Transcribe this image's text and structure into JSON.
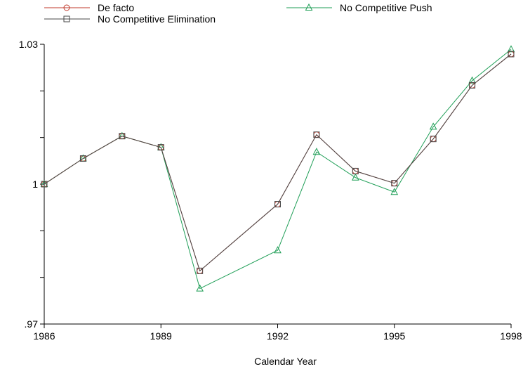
{
  "chart_data": {
    "type": "line",
    "xlabel": "Calendar Year",
    "ylabel": "",
    "x": [
      1986,
      1987,
      1988,
      1989,
      1990,
      1992,
      1993,
      1994,
      1995,
      1996,
      1997,
      1998
    ],
    "xlim": [
      1986,
      1998
    ],
    "ylim": [
      0.97,
      1.03
    ],
    "x_ticks": [
      1986,
      1989,
      1992,
      1995,
      1998
    ],
    "x_tick_labels": [
      "1986",
      "1989",
      "1992",
      "1995",
      "1998"
    ],
    "y_ticks": [
      0.97,
      0.98,
      0.99,
      1.0,
      1.01,
      1.02,
      1.03
    ],
    "y_tick_labels": [
      ".97",
      "",
      "",
      "1",
      "",
      "",
      "1.03"
    ],
    "grid": false,
    "legend_position": "top",
    "series": [
      {
        "name": "De facto",
        "color": "#c0392b",
        "marker": "circle",
        "values": [
          1.0,
          1.0055,
          1.0103,
          1.0079,
          0.9814,
          0.9957,
          1.0106,
          1.0028,
          1.0002,
          1.0097,
          1.0212,
          1.0279
        ]
      },
      {
        "name": "No Competitive Push",
        "color": "#1e9e56",
        "marker": "triangle",
        "values": [
          1.0,
          1.0055,
          1.0103,
          1.0079,
          0.9776,
          0.9858,
          1.0069,
          1.0014,
          0.9983,
          1.0123,
          1.0222,
          1.0289
        ]
      },
      {
        "name": "No Competitive Elimination",
        "color": "#4a4a4a",
        "marker": "square",
        "values": [
          1.0,
          1.0055,
          1.0103,
          1.0079,
          0.9814,
          0.9957,
          1.0106,
          1.0028,
          1.0002,
          1.0097,
          1.0212,
          1.0279
        ]
      }
    ]
  }
}
